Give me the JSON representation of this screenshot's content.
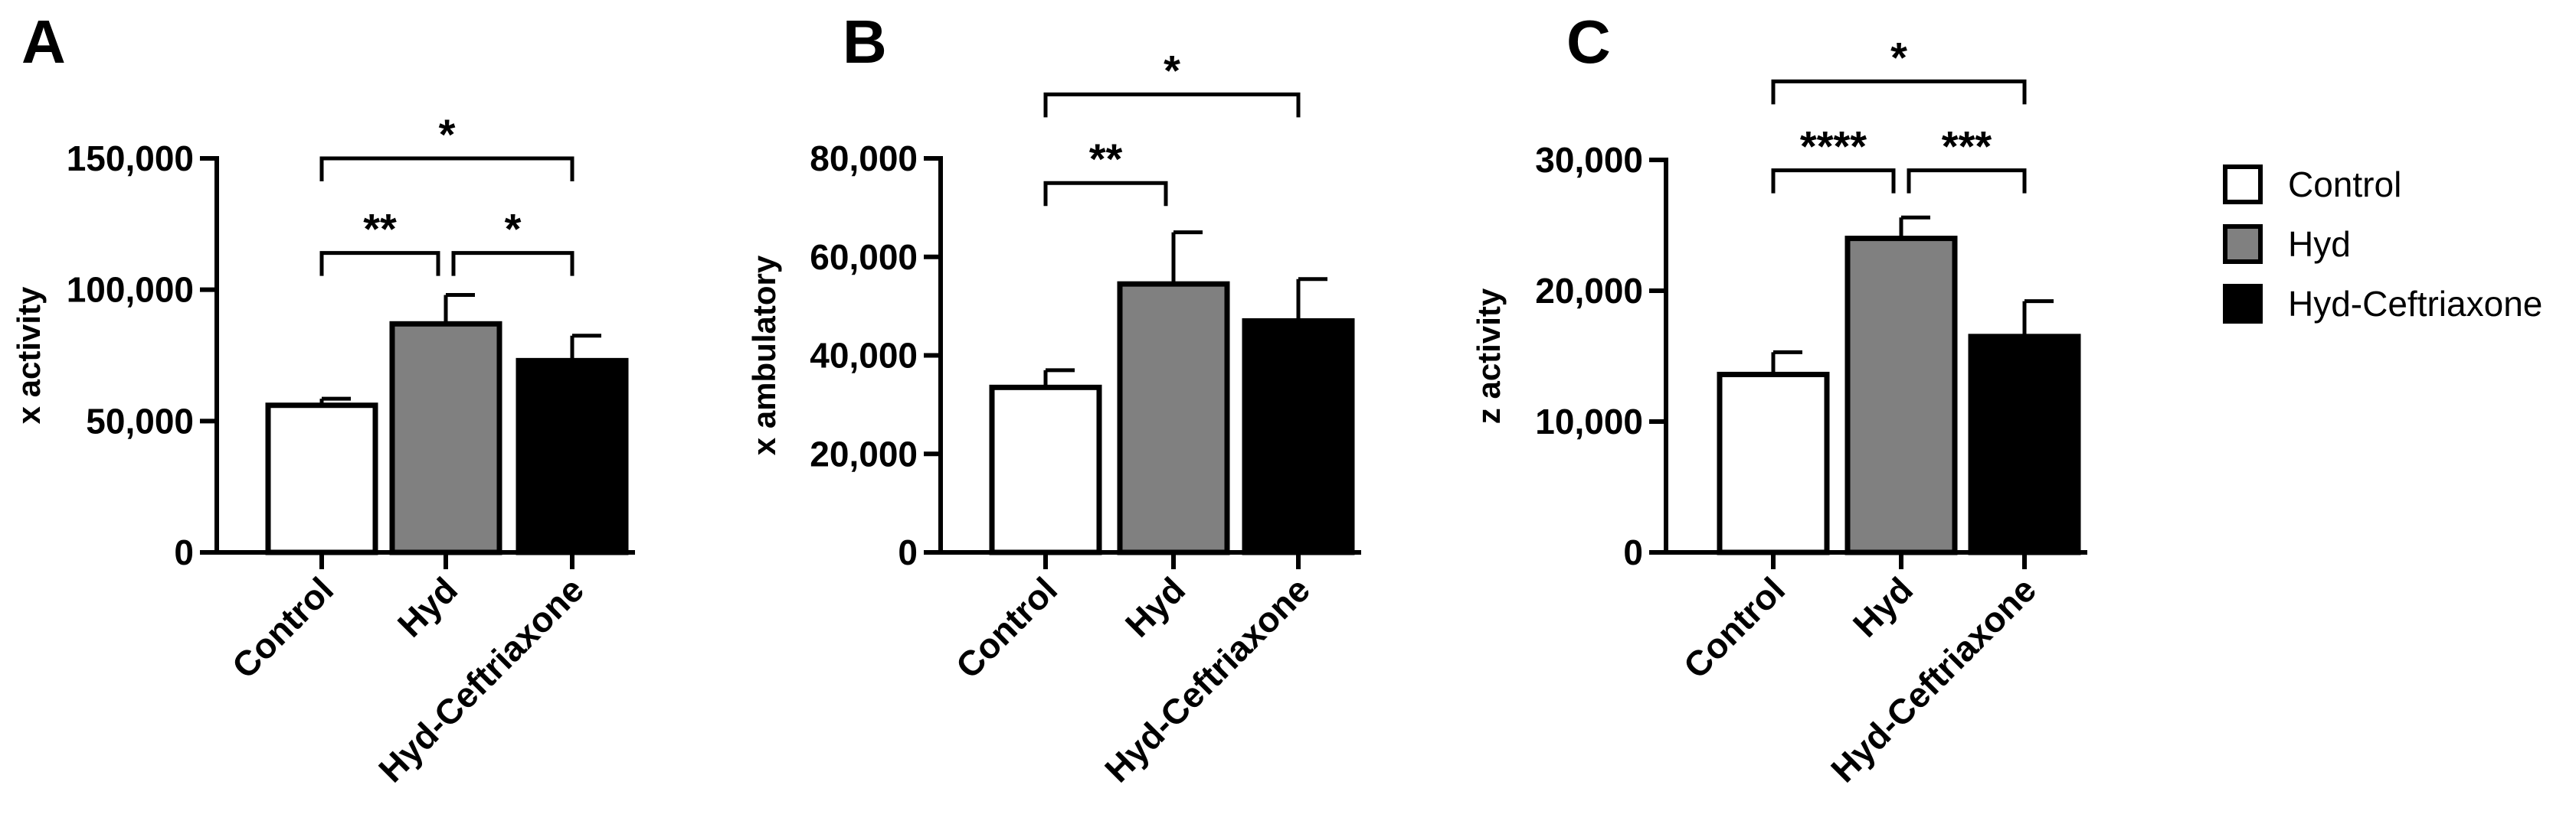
{
  "chart_data": [
    {
      "type": "bar",
      "panel": "A",
      "categories": [
        "Control",
        "Hyd",
        "Hyd-Ceftriaxone"
      ],
      "values": [
        56000,
        87000,
        73000
      ],
      "errors": [
        2500,
        11000,
        9500
      ],
      "ylabel": "x activity",
      "ylim": [
        0,
        150000
      ],
      "yticks": [
        0,
        50000,
        100000,
        150000
      ],
      "ytick_labels": [
        "0",
        "50,000",
        "100,000",
        "150,000"
      ],
      "significance": [
        {
          "from": 0,
          "to": 1,
          "label": "**",
          "y": 114000
        },
        {
          "from": 1,
          "to": 2,
          "label": "*",
          "y": 114000
        },
        {
          "from": 0,
          "to": 2,
          "label": "*",
          "y": 150000
        }
      ]
    },
    {
      "type": "bar",
      "panel": "B",
      "categories": [
        "Control",
        "Hyd",
        "Hyd-Ceftriaxone"
      ],
      "values": [
        33500,
        54500,
        47000
      ],
      "errors": [
        3500,
        10500,
        8500
      ],
      "ylabel": "x ambulatory",
      "ylim": [
        0,
        80000
      ],
      "yticks": [
        0,
        20000,
        40000,
        60000,
        80000
      ],
      "ytick_labels": [
        "0",
        "20,000",
        "40,000",
        "60,000",
        "80,000"
      ],
      "significance": [
        {
          "from": 0,
          "to": 1,
          "label": "**",
          "y": 75000
        },
        {
          "from": 0,
          "to": 2,
          "label": "*",
          "y": 93000
        }
      ]
    },
    {
      "type": "bar",
      "panel": "C",
      "categories": [
        "Control",
        "Hyd",
        "Hyd-Ceftriaxone"
      ],
      "values": [
        13600,
        24000,
        16500
      ],
      "errors": [
        1700,
        1600,
        2700
      ],
      "ylabel": "z activity",
      "ylim": [
        0,
        30000
      ],
      "yticks": [
        0,
        10000,
        20000,
        30000
      ],
      "ytick_labels": [
        "0",
        "10,000",
        "20,000",
        "30,000"
      ],
      "significance": [
        {
          "from": 0,
          "to": 1,
          "label": "****",
          "y": 29200
        },
        {
          "from": 1,
          "to": 2,
          "label": "***",
          "y": 29200
        },
        {
          "from": 0,
          "to": 2,
          "label": "*",
          "y": 36000
        }
      ]
    }
  ],
  "legend": [
    {
      "label": "Control",
      "fill": "#ffffff"
    },
    {
      "label": "Hyd",
      "fill": "#808080"
    },
    {
      "label": "Hyd-Ceftriaxone",
      "fill": "#000000"
    }
  ],
  "colors": {
    "control": "#ffffff",
    "hyd": "#808080",
    "hyd_ceftriaxone": "#000000",
    "stroke": "#000000"
  }
}
